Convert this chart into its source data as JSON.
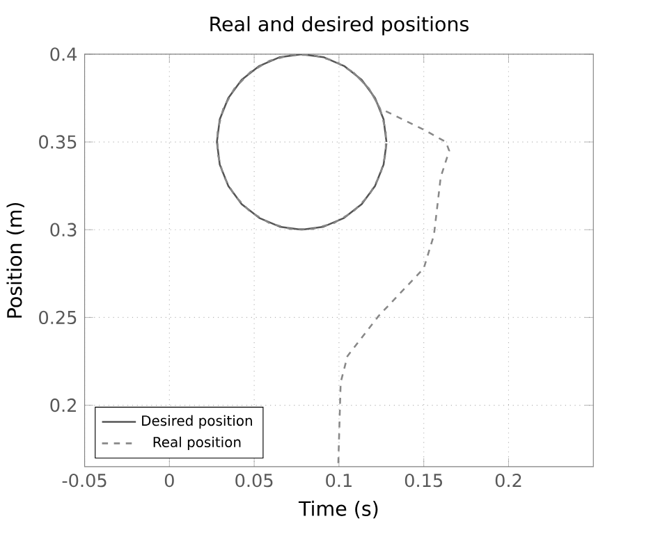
{
  "chart_data": {
    "type": "line",
    "title": "Real and desired positions",
    "xlabel": "Time (s)",
    "ylabel": "Position (m)",
    "xlim": [
      -0.05,
      0.25
    ],
    "ylim": [
      0.165,
      0.4
    ],
    "xticks": [
      -0.05,
      0,
      0.05,
      0.1,
      0.15,
      0.2
    ],
    "yticks": [
      0.2,
      0.25,
      0.3,
      0.35,
      0.4
    ],
    "grid": true,
    "legend": "bottom left",
    "series": [
      {
        "name": "Desired position",
        "color": "#555555",
        "line_style": "solid",
        "x": [
          0.128,
          0.1263,
          0.1213,
          0.1134,
          0.103,
          0.0909,
          0.078,
          0.0651,
          0.053,
          0.0426,
          0.0347,
          0.0297,
          0.028,
          0.0297,
          0.0347,
          0.0426,
          0.053,
          0.0651,
          0.078,
          0.0909,
          0.103,
          0.1134,
          0.1213,
          0.1263,
          0.128
        ],
        "values": [
          0.35,
          0.3629,
          0.375,
          0.3854,
          0.3933,
          0.3983,
          0.4,
          0.3983,
          0.3933,
          0.3854,
          0.375,
          0.3629,
          0.35,
          0.3371,
          0.325,
          0.3146,
          0.3067,
          0.3017,
          0.3,
          0.3017,
          0.3067,
          0.3146,
          0.325,
          0.3371,
          0.3491
        ]
      },
      {
        "name": "Real position",
        "color": "#888888",
        "line_style": "dashed",
        "x": [
          0.0996,
          0.101,
          0.105,
          0.1235,
          0.15,
          0.156,
          0.16,
          0.165,
          0.163,
          0.15,
          0.1242,
          0.1177,
          0.1084,
          0.0971,
          0.0845,
          0.0715,
          0.0589,
          0.0476,
          0.0383,
          0.0318,
          0.0284,
          0.0284,
          0.0318,
          0.0383,
          0.0476,
          0.0589,
          0.0715,
          0.0845,
          0.0971,
          0.1084,
          0.1177,
          0.1242,
          0.1276,
          0.1276,
          0.1242,
          0.1177,
          0.1084
        ],
        "values": [
          0.167,
          0.213,
          0.228,
          0.251,
          0.278,
          0.297,
          0.33,
          0.345,
          0.35,
          0.357,
          0.3691,
          0.3804,
          0.3897,
          0.3962,
          0.3996,
          0.3996,
          0.3962,
          0.3897,
          0.3804,
          0.3691,
          0.3565,
          0.3435,
          0.3309,
          0.3196,
          0.3103,
          0.3038,
          0.3004,
          0.3004,
          0.3038,
          0.3103,
          0.3196,
          0.3309,
          0.3435,
          0.3565,
          0.3691,
          0.3804,
          0.3897
        ]
      }
    ]
  }
}
